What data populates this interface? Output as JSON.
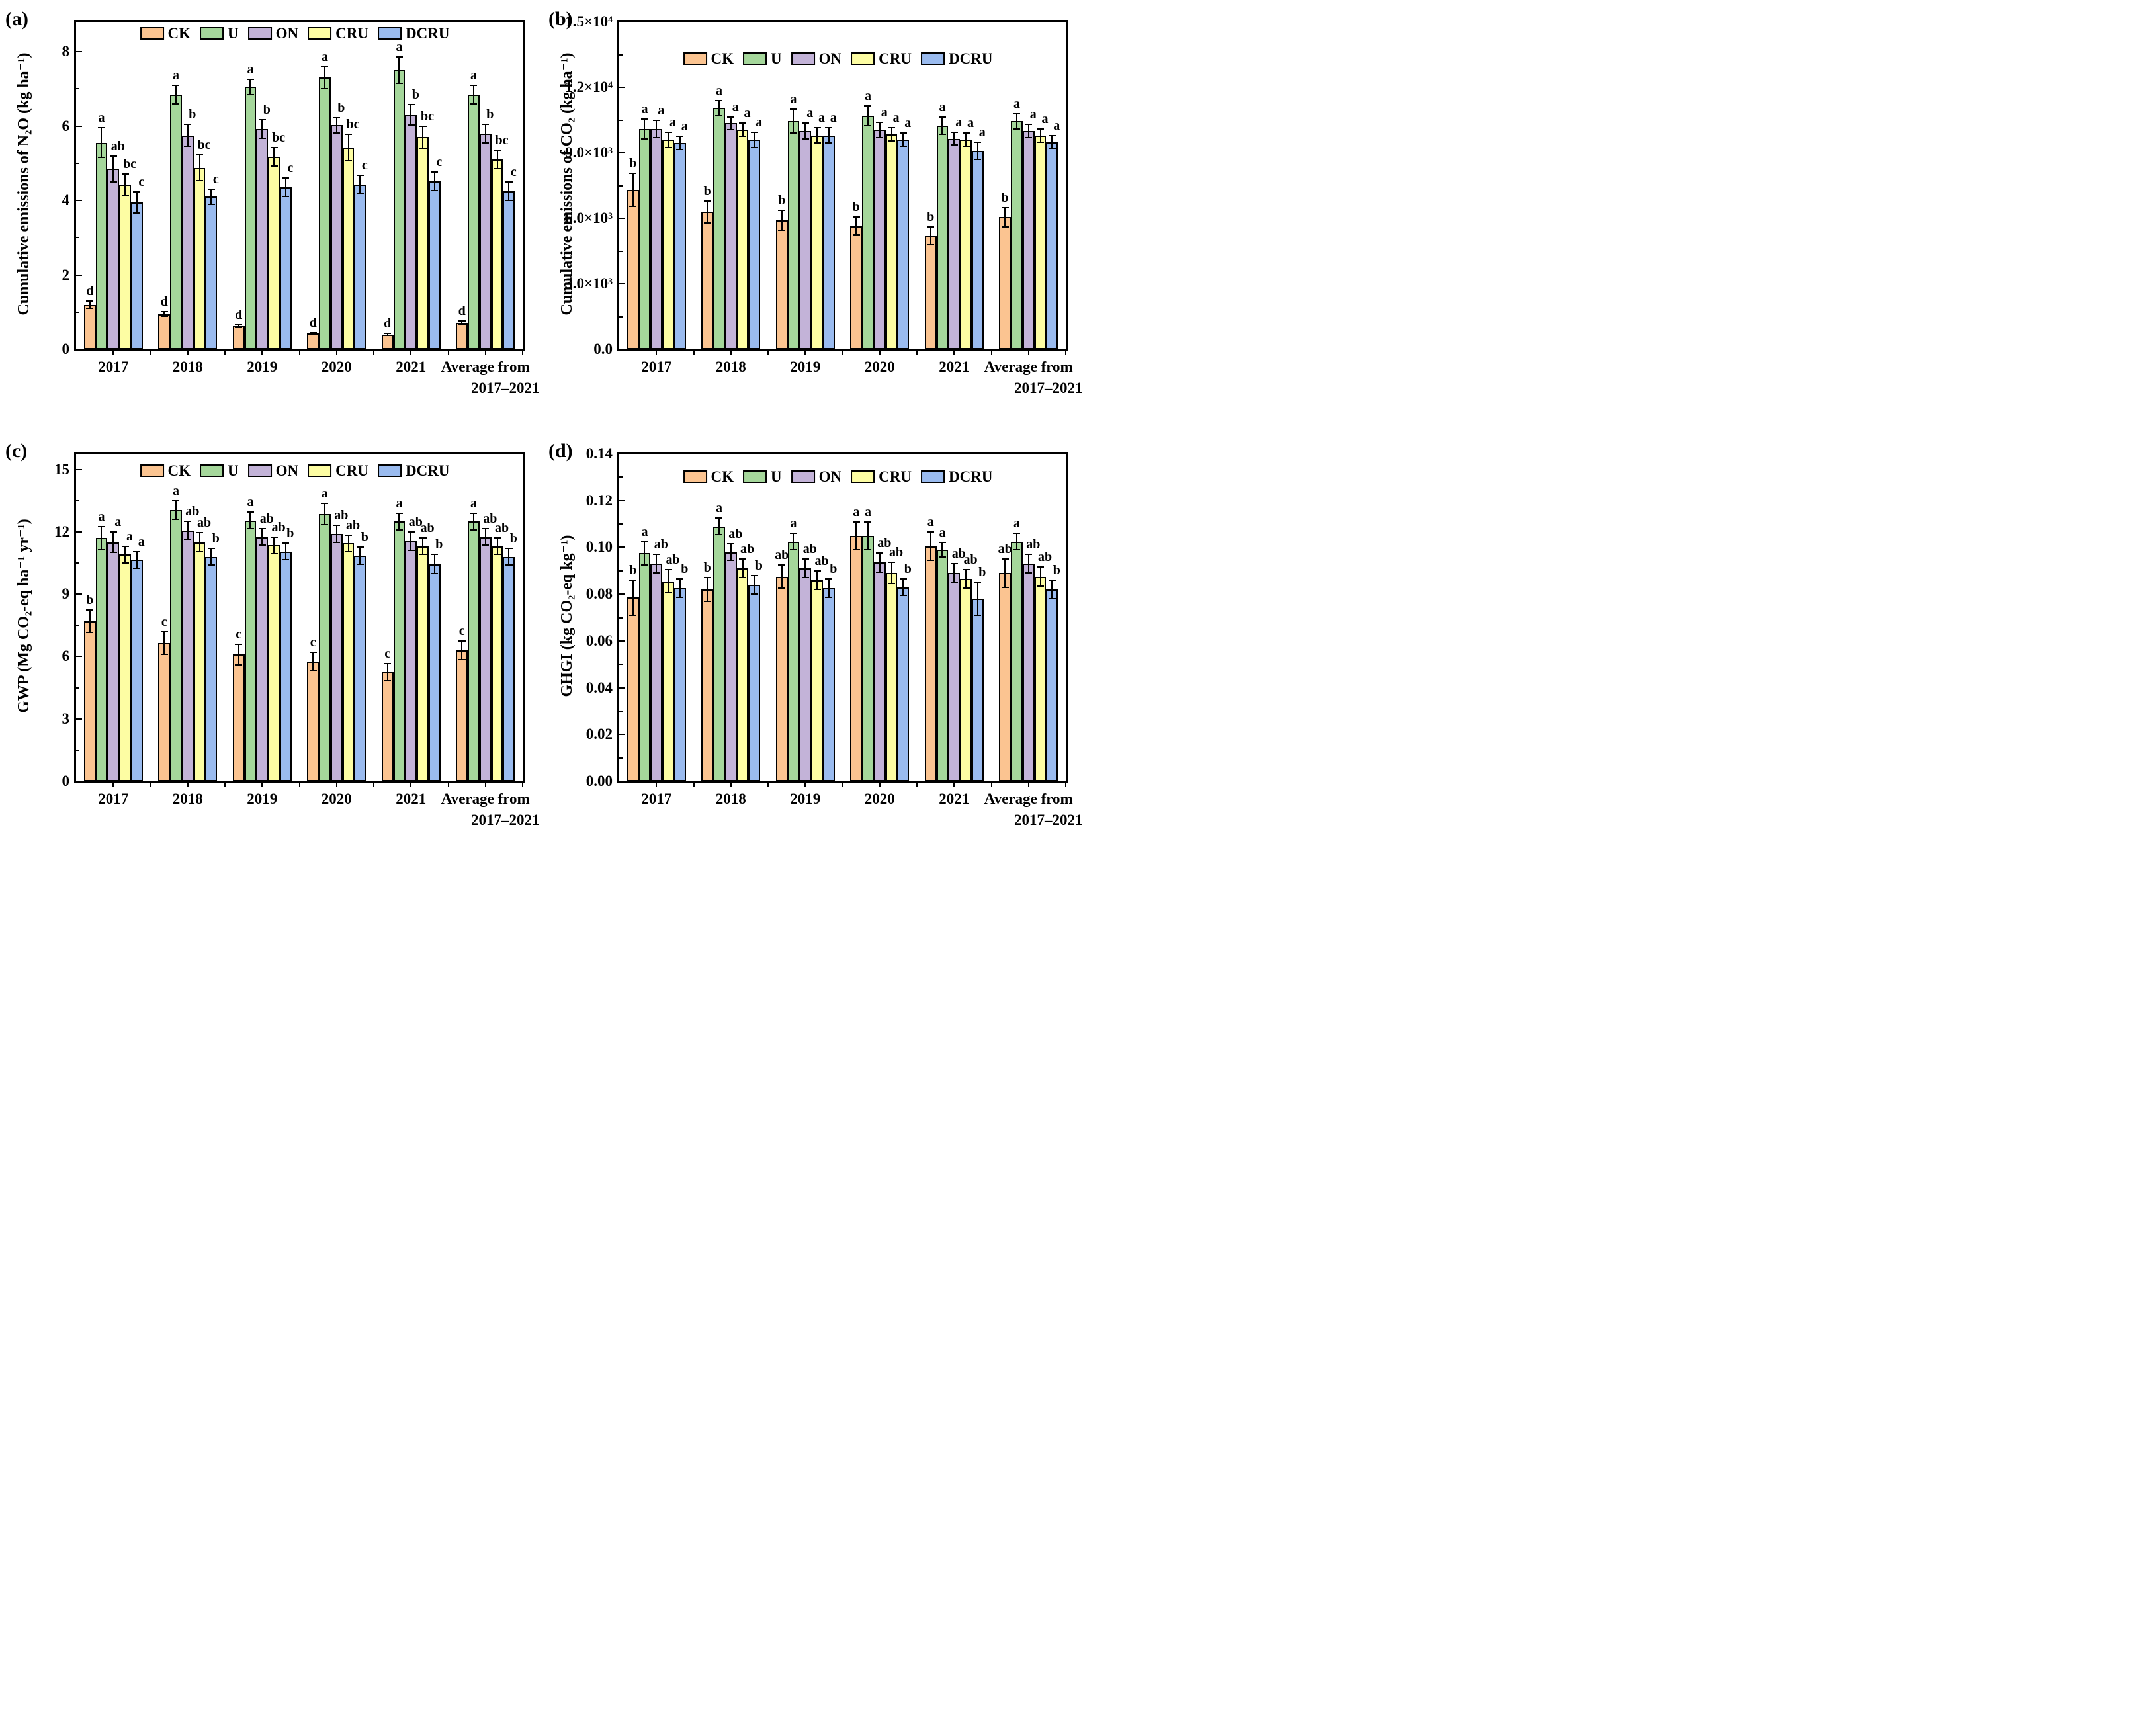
{
  "chart_data": [
    {
      "type": "bar",
      "id": "a",
      "tag": "(a)",
      "ylabel": "Cumulative emissions of N₂O (kg ha⁻¹)",
      "xlabel": "",
      "categories": [
        "2017",
        "2018",
        "2019",
        "2020",
        "2021",
        "Average from"
      ],
      "x_sublabel": "2017–2021",
      "ylim": [
        0,
        8.8
      ],
      "grid": false,
      "legend_position": "top-center",
      "legend_offset_frac": 0.012,
      "yticks": [
        {
          "v": 0,
          "label": "0"
        },
        {
          "v": 2,
          "label": "2"
        },
        {
          "v": 4,
          "label": "4"
        },
        {
          "v": 6,
          "label": "6"
        },
        {
          "v": 8,
          "label": "8"
        }
      ],
      "yminor": [
        1,
        3,
        5,
        7
      ],
      "series": [
        {
          "name": "CK",
          "color": "#FBC491",
          "values": [
            1.2,
            0.95,
            0.62,
            0.42,
            0.4,
            0.72
          ],
          "errors": [
            0.1,
            0.06,
            0.04,
            0.03,
            0.03,
            0.05
          ],
          "letters": [
            "d",
            "d",
            "d",
            "d",
            "d",
            "d"
          ]
        },
        {
          "name": "U",
          "color": "#A5D79B",
          "values": [
            5.55,
            6.85,
            7.05,
            7.3,
            7.5,
            6.85
          ],
          "errors": [
            0.4,
            0.25,
            0.2,
            0.3,
            0.35,
            0.25
          ],
          "letters": [
            "a",
            "a",
            "a",
            "a",
            "a",
            "a"
          ]
        },
        {
          "name": "ON",
          "color": "#C3B3D8",
          "values": [
            4.85,
            5.75,
            5.92,
            6.02,
            6.3,
            5.8
          ],
          "errors": [
            0.35,
            0.3,
            0.25,
            0.2,
            0.28,
            0.25
          ],
          "letters": [
            "ab",
            "b",
            "b",
            "b",
            "b",
            "b"
          ]
        },
        {
          "name": "CRU",
          "color": "#FDFDA3",
          "values": [
            4.42,
            4.88,
            5.18,
            5.42,
            5.7,
            5.1
          ],
          "errors": [
            0.3,
            0.35,
            0.25,
            0.35,
            0.3,
            0.25
          ],
          "letters": [
            "bc",
            "bc",
            "bc",
            "bc",
            "bc",
            "bc"
          ]
        },
        {
          "name": "DCRU",
          "color": "#9ABBEF",
          "values": [
            3.95,
            4.1,
            4.35,
            4.42,
            4.52,
            4.25
          ],
          "errors": [
            0.28,
            0.2,
            0.25,
            0.25,
            0.25,
            0.25
          ],
          "letters": [
            "c",
            "c",
            "c",
            "c",
            "c",
            "c"
          ]
        }
      ]
    },
    {
      "type": "bar",
      "id": "b",
      "tag": "(b)",
      "ylabel": "Cumulative emissions of CO₂ (kg ha⁻¹)",
      "xlabel": "",
      "categories": [
        "2017",
        "2018",
        "2019",
        "2020",
        "2021",
        "Average from"
      ],
      "x_sublabel": "2017–2021",
      "ylim": [
        0,
        15000
      ],
      "grid": false,
      "legend_position": "top-center",
      "legend_offset_frac": 0.088,
      "yticks": [
        {
          "v": 0,
          "label": "0.0"
        },
        {
          "v": 3000,
          "label": "3.0×10³"
        },
        {
          "v": 6000,
          "label": "6.0×10³"
        },
        {
          "v": 9000,
          "label": "9.0×10³"
        },
        {
          "v": 12000,
          "label": "1.2×10⁴"
        },
        {
          "v": 15000,
          "label": "1.5×10⁴"
        }
      ],
      "yminor": [
        1500,
        4500,
        7500,
        10500,
        13500
      ],
      "series": [
        {
          "name": "CK",
          "color": "#FBC491",
          "values": [
            7300,
            6300,
            5900,
            5650,
            5200,
            6050
          ],
          "errors": [
            750,
            500,
            450,
            400,
            400,
            450
          ],
          "letters": [
            "b",
            "b",
            "b",
            "b",
            "b",
            "b"
          ]
        },
        {
          "name": "U",
          "color": "#A5D79B",
          "values": [
            10100,
            11050,
            10450,
            10700,
            10250,
            10450
          ],
          "errors": [
            450,
            350,
            550,
            450,
            400,
            350
          ],
          "letters": [
            "a",
            "a",
            "a",
            "a",
            "a",
            "a"
          ]
        },
        {
          "name": "ON",
          "color": "#C3B3D8",
          "values": [
            10100,
            10350,
            10000,
            10050,
            9650,
            10000
          ],
          "errors": [
            400,
            300,
            350,
            350,
            300,
            300
          ],
          "letters": [
            "a",
            "a",
            "a",
            "a",
            "a",
            "a"
          ]
        },
        {
          "name": "CRU",
          "color": "#FDFDA3",
          "values": [
            9600,
            10050,
            9800,
            9850,
            9600,
            9800
          ],
          "errors": [
            350,
            300,
            350,
            300,
            300,
            300
          ],
          "letters": [
            "a",
            "a",
            "a",
            "a",
            "a",
            "a"
          ]
        },
        {
          "name": "DCRU",
          "color": "#9ABBEF",
          "values": [
            9450,
            9600,
            9800,
            9600,
            9100,
            9500
          ],
          "errors": [
            300,
            350,
            350,
            300,
            400,
            300
          ],
          "letters": [
            "a",
            "a",
            "a",
            "a",
            "a",
            "a"
          ]
        }
      ]
    },
    {
      "type": "bar",
      "id": "c",
      "tag": "(c)",
      "ylabel": "GWP (Mg CO₂-eq ha⁻¹ yr⁻¹)",
      "xlabel": "",
      "categories": [
        "2017",
        "2018",
        "2019",
        "2020",
        "2021",
        "Average from"
      ],
      "x_sublabel": "2017–2021",
      "ylim": [
        0,
        15.75
      ],
      "grid": false,
      "legend_position": "top-center",
      "legend_offset_frac": 0.028,
      "yticks": [
        {
          "v": 0,
          "label": "0"
        },
        {
          "v": 3,
          "label": "3"
        },
        {
          "v": 6,
          "label": "6"
        },
        {
          "v": 9,
          "label": "9"
        },
        {
          "v": 12,
          "label": "12"
        },
        {
          "v": 15,
          "label": "15"
        }
      ],
      "yminor": [
        1.5,
        4.5,
        7.5,
        10.5,
        13.5
      ],
      "series": [
        {
          "name": "CK",
          "color": "#FBC491",
          "values": [
            7.7,
            6.65,
            6.1,
            5.75,
            5.25,
            6.3
          ],
          "errors": [
            0.55,
            0.55,
            0.5,
            0.45,
            0.4,
            0.45
          ],
          "letters": [
            "b",
            "c",
            "c",
            "c",
            "c",
            "c"
          ]
        },
        {
          "name": "U",
          "color": "#A5D79B",
          "values": [
            11.7,
            13.05,
            12.55,
            12.85,
            12.5,
            12.5
          ],
          "errors": [
            0.55,
            0.45,
            0.4,
            0.5,
            0.4,
            0.4
          ],
          "letters": [
            "a",
            "a",
            "a",
            "a",
            "a",
            "a"
          ]
        },
        {
          "name": "ON",
          "color": "#C3B3D8",
          "values": [
            11.5,
            12.05,
            11.75,
            11.9,
            11.55,
            11.75
          ],
          "errors": [
            0.5,
            0.45,
            0.4,
            0.4,
            0.45,
            0.4
          ],
          "letters": [
            "a",
            "ab",
            "ab",
            "ab",
            "ab",
            "ab"
          ]
        },
        {
          "name": "CRU",
          "color": "#FDFDA3",
          "values": [
            10.9,
            11.5,
            11.35,
            11.45,
            11.3,
            11.3
          ],
          "errors": [
            0.4,
            0.45,
            0.4,
            0.4,
            0.4,
            0.4
          ],
          "letters": [
            "a",
            "ab",
            "ab",
            "ab",
            "ab",
            "ab"
          ]
        },
        {
          "name": "DCRU",
          "color": "#9ABBEF",
          "values": [
            10.65,
            10.8,
            11.05,
            10.85,
            10.45,
            10.8
          ],
          "errors": [
            0.4,
            0.4,
            0.4,
            0.4,
            0.45,
            0.4
          ],
          "letters": [
            "a",
            "b",
            "b",
            "b",
            "b",
            "b"
          ]
        }
      ]
    },
    {
      "type": "bar",
      "id": "d",
      "tag": "(d)",
      "ylabel": "GHGI (kg CO₂-eq kg⁻¹)",
      "xlabel": "",
      "categories": [
        "2017",
        "2018",
        "2019",
        "2020",
        "2021",
        "Average from"
      ],
      "x_sublabel": "2017–2021",
      "ylim": [
        0,
        0.14
      ],
      "grid": false,
      "legend_position": "top-center",
      "legend_offset_frac": 0.046,
      "yticks": [
        {
          "v": 0,
          "label": "0.00"
        },
        {
          "v": 0.02,
          "label": "0.02"
        },
        {
          "v": 0.04,
          "label": "0.04"
        },
        {
          "v": 0.06,
          "label": "0.06"
        },
        {
          "v": 0.08,
          "label": "0.08"
        },
        {
          "v": 0.1,
          "label": "0.10"
        },
        {
          "v": 0.12,
          "label": "0.12"
        },
        {
          "v": 0.14,
          "label": "0.14"
        }
      ],
      "yminor": [
        0.01,
        0.03,
        0.05,
        0.07,
        0.09,
        0.11,
        0.13
      ],
      "series": [
        {
          "name": "CK",
          "color": "#FBC491",
          "values": [
            0.0785,
            0.082,
            0.0875,
            0.105,
            0.1005,
            0.089
          ],
          "errors": [
            0.0075,
            0.005,
            0.005,
            0.006,
            0.006,
            0.006
          ],
          "letters": [
            "b",
            "b",
            "ab",
            "a",
            "a",
            "ab"
          ]
        },
        {
          "name": "U",
          "color": "#A5D79B",
          "values": [
            0.0975,
            0.109,
            0.1025,
            0.105,
            0.099,
            0.1025
          ],
          "errors": [
            0.005,
            0.0035,
            0.0035,
            0.006,
            0.003,
            0.0035
          ],
          "letters": [
            "a",
            "a",
            "a",
            "a",
            "a",
            "a"
          ]
        },
        {
          "name": "ON",
          "color": "#C3B3D8",
          "values": [
            0.093,
            0.098,
            0.091,
            0.0935,
            0.089,
            0.093
          ],
          "errors": [
            0.004,
            0.0035,
            0.004,
            0.004,
            0.004,
            0.004
          ],
          "letters": [
            "ab",
            "ab",
            "ab",
            "ab",
            "ab",
            "ab"
          ]
        },
        {
          "name": "CRU",
          "color": "#FDFDA3",
          "values": [
            0.0855,
            0.091,
            0.086,
            0.089,
            0.0865,
            0.0875
          ],
          "errors": [
            0.005,
            0.004,
            0.004,
            0.0045,
            0.004,
            0.004
          ],
          "letters": [
            "ab",
            "ab",
            "ab",
            "ab",
            "ab",
            "ab"
          ]
        },
        {
          "name": "DCRU",
          "color": "#9ABBEF",
          "values": [
            0.0825,
            0.084,
            0.0825,
            0.083,
            0.078,
            0.082
          ],
          "errors": [
            0.004,
            0.004,
            0.004,
            0.0035,
            0.007,
            0.004
          ],
          "letters": [
            "b",
            "b",
            "b",
            "b",
            "b",
            "b"
          ]
        }
      ]
    }
  ]
}
